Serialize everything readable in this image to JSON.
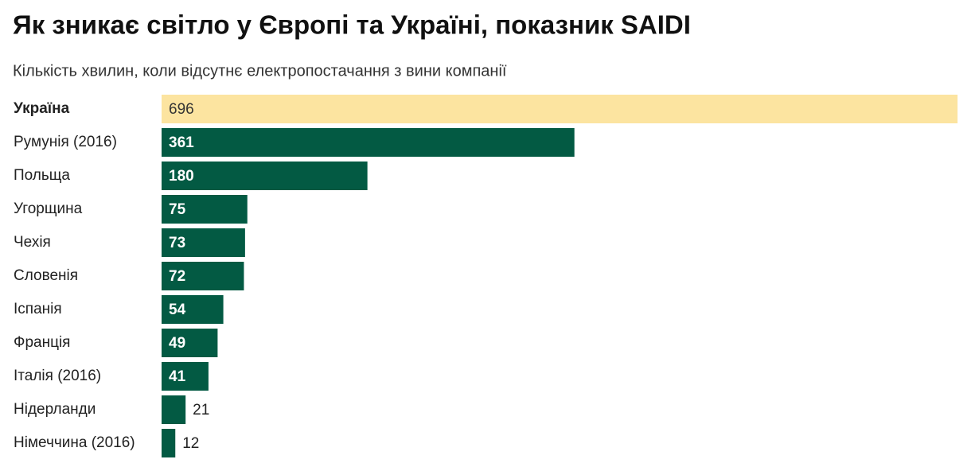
{
  "chart_data": {
    "type": "bar",
    "orientation": "horizontal",
    "title": "Як зникає світло у Європі та Україні, показник SAIDI",
    "subtitle": "Кількість хвилин, коли відсутнє електропостачання з вини компанії",
    "categories": [
      "Україна",
      "Румунія (2016)",
      "Польща",
      "Угорщина",
      "Чехія",
      "Словенія",
      "Іспанія",
      "Франція",
      "Італія (2016)",
      "Нідерланди",
      "Німеччина (2016)"
    ],
    "values": [
      696,
      361,
      180,
      75,
      73,
      72,
      54,
      49,
      41,
      21,
      12
    ],
    "color": "#035a43",
    "highlight": {
      "index": 0,
      "color": "#fce4a0"
    }
  }
}
